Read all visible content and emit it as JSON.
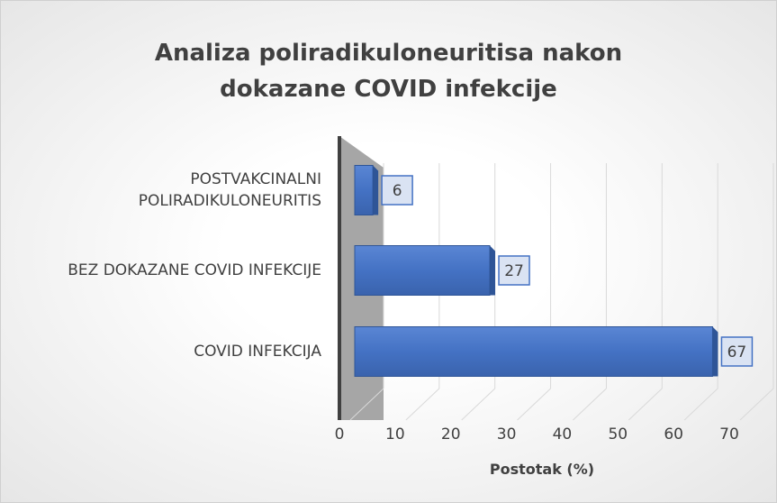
{
  "chart_data": {
    "type": "bar",
    "orientation": "horizontal",
    "title": "Analiza poliradikuloneuritisa nakon dokazane COVID infekcije",
    "categories": [
      "POSTVAKCINALNI POLIRADIKULONEURITIS",
      "BEZ DOKAZANE COVID INFEKCIJE",
      "COVID INFEKCIJA"
    ],
    "values": [
      6,
      27,
      67
    ],
    "color": "#4472c4",
    "xlabel": "Postotak (%)",
    "xlim": [
      0,
      70
    ],
    "xticks": [
      0,
      10,
      20,
      30,
      40,
      50,
      60,
      70
    ],
    "grid": true
  }
}
